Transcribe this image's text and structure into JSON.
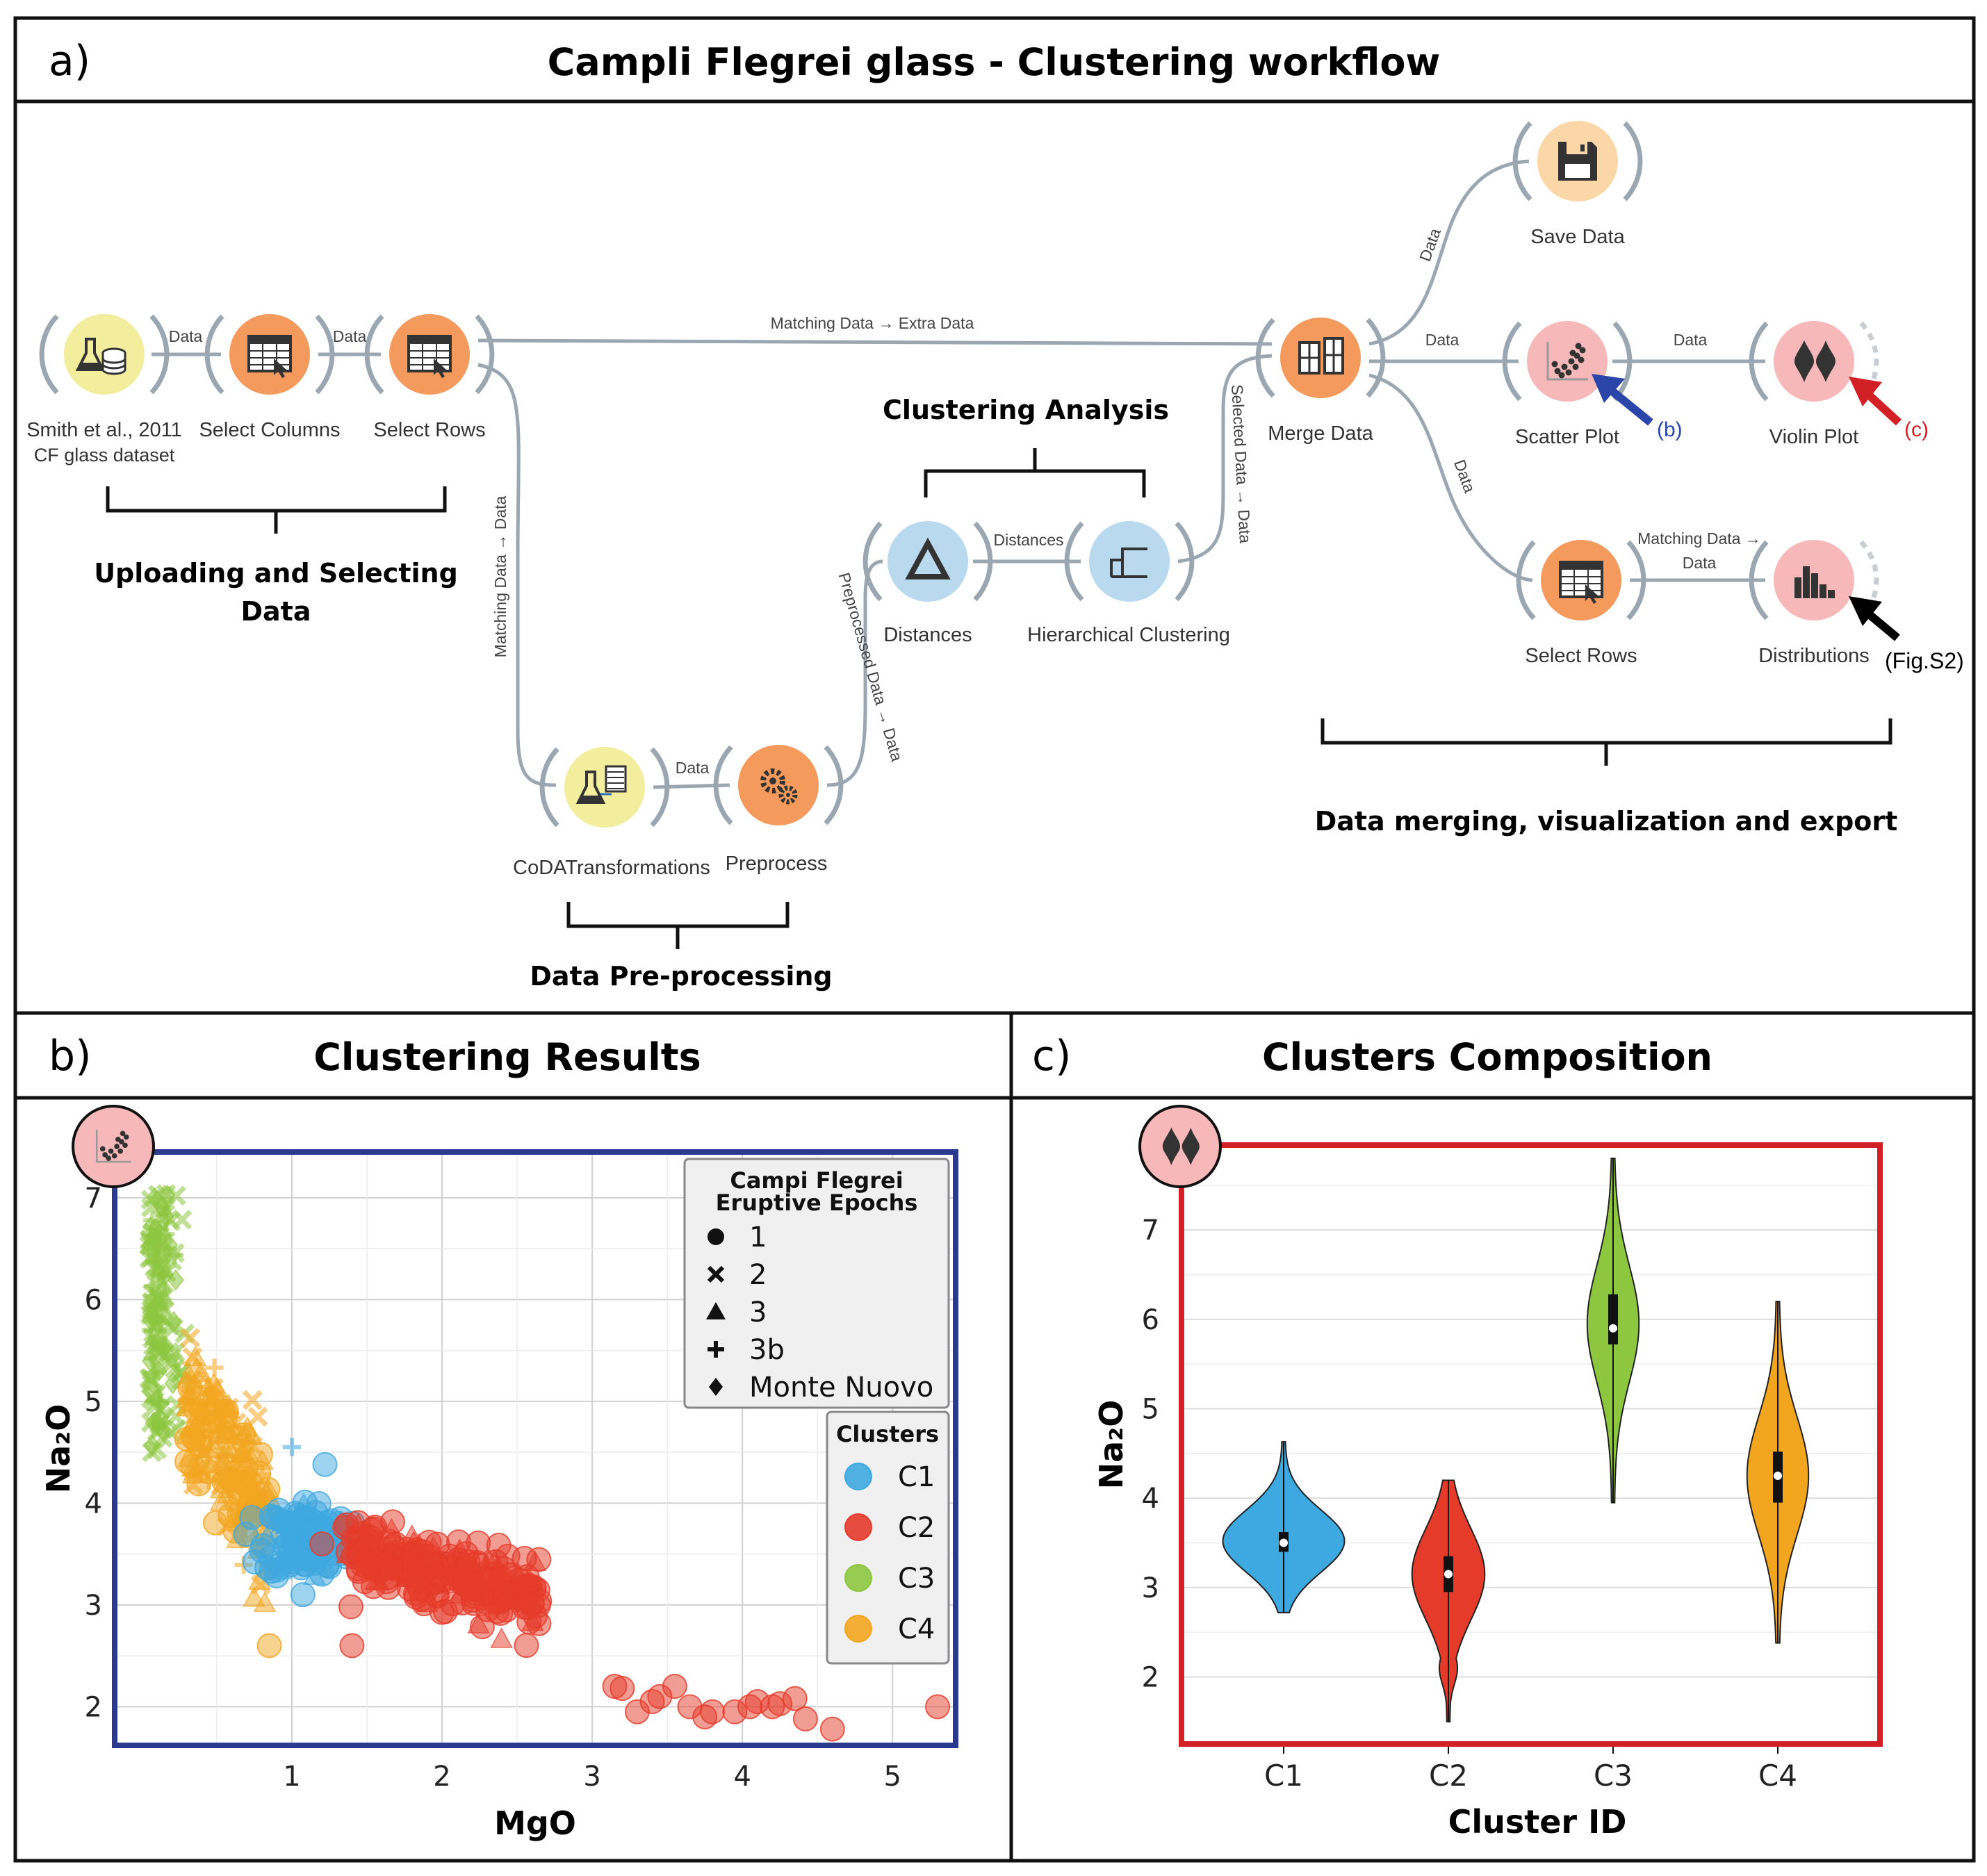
{
  "panel_a": {
    "letter": "a)",
    "title": "Campli Flegrei glass - Clustering workflow",
    "nodes": [
      {
        "id": "dataset",
        "label": "Smith et al., 2011",
        "label2": "CF glass dataset",
        "icon": "flask-database-icon",
        "color": "#f2ee9e"
      },
      {
        "id": "select_columns",
        "label": "Select Columns",
        "icon": "table-columns-icon",
        "color": "#f39a5c"
      },
      {
        "id": "select_rows_1",
        "label": "Select Rows",
        "icon": "table-rows-cursor-icon",
        "color": "#f39a5c"
      },
      {
        "id": "coda",
        "label": "CoDATransformations",
        "icon": "flask-table-icon",
        "color": "#f2ee9e"
      },
      {
        "id": "preprocess",
        "label": "Preprocess",
        "icon": "gears-icon",
        "color": "#f39a5c"
      },
      {
        "id": "distances",
        "label": "Distances",
        "icon": "triangle-icon",
        "color": "#b9d9ef"
      },
      {
        "id": "hier",
        "label": "Hierarchical Clustering",
        "icon": "dendrogram-icon",
        "color": "#b9d9ef"
      },
      {
        "id": "merge",
        "label": "Merge Data",
        "icon": "merge-table-icon",
        "color": "#f39a5c"
      },
      {
        "id": "save",
        "label": "Save Data",
        "icon": "floppy-disk-icon",
        "color": "#fbd7a8"
      },
      {
        "id": "scatter",
        "label": "Scatter Plot",
        "icon": "scatter-plot-icon",
        "color": "#f6b8b8"
      },
      {
        "id": "violin",
        "label": "Violin Plot",
        "icon": "violin-plot-icon",
        "color": "#f6b8b8"
      },
      {
        "id": "select_rows_2",
        "label": "Select Rows",
        "icon": "table-rows-cursor-icon",
        "color": "#f39a5c"
      },
      {
        "id": "distributions",
        "label": "Distributions",
        "icon": "histogram-icon",
        "color": "#f6b8b8"
      }
    ],
    "links": {
      "data": "Data",
      "matching_extra": "Matching Data → Extra Data",
      "matching_data": "Matching Data → Data",
      "preprocessed": "Preprocessed Data → Data",
      "distances": "Distances",
      "selected": "Selected Data → Data",
      "matching_data_l1": "Matching Data →",
      "matching_data_l2": "Data"
    },
    "groups": {
      "uploading_l1": "Uploading and Selecting",
      "uploading_l2": "Data",
      "preprocessing": "Data Pre-processing",
      "clustering": "Clustering Analysis",
      "merging": "Data merging, visualization and export"
    },
    "arrows": {
      "b": "(b)",
      "c": "(c)",
      "s2": "(Fig.S2)"
    },
    "arrow_colors": {
      "b": "#2b45a8",
      "c": "#d22027",
      "s2": "#000000"
    }
  },
  "panel_b": {
    "letter": "b)",
    "title": "Clustering Results",
    "frame_color": "#2b3a8f",
    "chart_data": {
      "type": "scatter",
      "xlabel": "MgO",
      "ylabel": "Na₂O",
      "xlim": [
        -0.18,
        5.42
      ],
      "ylim": [
        1.62,
        7.45
      ],
      "xticks": [
        1,
        2,
        3,
        4,
        5
      ],
      "yticks": [
        2,
        3,
        4,
        5,
        6,
        7
      ],
      "grid": true,
      "legend_placement": "top-right",
      "legend_epochs_title_l1": "Campi Flegrei",
      "legend_epochs_title_l2": "Eruptive Epochs",
      "legend_epochs": [
        "1",
        "2",
        "3",
        "3b",
        "Monte Nuovo"
      ],
      "legend_clusters_title": "Clusters",
      "clusters": [
        {
          "name": "C1",
          "color": "#3ea8e0"
        },
        {
          "name": "C2",
          "color": "#e53b2a"
        },
        {
          "name": "C3",
          "color": "#8dc63f"
        },
        {
          "name": "C4",
          "color": "#f2a620"
        }
      ],
      "cluster_regions": [
        {
          "cluster": "C3",
          "center": [
            0.12,
            5.8
          ],
          "spread": [
            0.08,
            0.8
          ],
          "count": 140
        },
        {
          "cluster": "C4",
          "center": [
            0.55,
            4.3
          ],
          "spread": [
            0.22,
            0.55
          ],
          "count": 200
        },
        {
          "cluster": "C1",
          "center": [
            1.1,
            3.65
          ],
          "spread": [
            0.14,
            0.35
          ],
          "count": 140
        },
        {
          "cluster": "C2",
          "center": [
            2.0,
            3.15
          ],
          "spread": [
            0.45,
            0.25
          ],
          "count": 230
        }
      ],
      "points": [
        {
          "x": 3.15,
          "y": 2.2,
          "c": "C2"
        },
        {
          "x": 3.2,
          "y": 2.18,
          "c": "C2"
        },
        {
          "x": 3.3,
          "y": 1.95,
          "c": "C2"
        },
        {
          "x": 3.4,
          "y": 2.05,
          "c": "C2"
        },
        {
          "x": 3.45,
          "y": 2.1,
          "c": "C2"
        },
        {
          "x": 3.55,
          "y": 2.2,
          "c": "C2"
        },
        {
          "x": 3.65,
          "y": 2.0,
          "c": "C2"
        },
        {
          "x": 3.75,
          "y": 1.9,
          "c": "C2"
        },
        {
          "x": 3.8,
          "y": 1.95,
          "c": "C2"
        },
        {
          "x": 3.95,
          "y": 1.95,
          "c": "C2"
        },
        {
          "x": 4.05,
          "y": 2.0,
          "c": "C2"
        },
        {
          "x": 4.1,
          "y": 2.05,
          "c": "C2"
        },
        {
          "x": 4.2,
          "y": 2.0,
          "c": "C2"
        },
        {
          "x": 4.25,
          "y": 2.03,
          "c": "C2"
        },
        {
          "x": 4.35,
          "y": 2.08,
          "c": "C2"
        },
        {
          "x": 4.42,
          "y": 1.88,
          "c": "C2"
        },
        {
          "x": 4.6,
          "y": 1.78,
          "c": "C2"
        },
        {
          "x": 5.3,
          "y": 2.0,
          "c": "C2"
        },
        {
          "x": 1.4,
          "y": 2.6,
          "c": "C2"
        },
        {
          "x": 0.85,
          "y": 2.6,
          "c": "C4"
        },
        {
          "x": 1.22,
          "y": 4.38,
          "c": "C1"
        },
        {
          "x": 1.2,
          "y": 3.6,
          "c": "C2"
        }
      ]
    }
  },
  "panel_c": {
    "letter": "c)",
    "title": "Clusters Composition",
    "frame_color": "#d22027",
    "chart_data": {
      "type": "violin",
      "xlabel": "Cluster ID",
      "ylabel": "Na₂O",
      "ylim": [
        1.25,
        7.95
      ],
      "yticks": [
        2,
        3,
        4,
        5,
        6,
        7
      ],
      "grid": true,
      "categories": [
        "C1",
        "C2",
        "C3",
        "C4"
      ],
      "series": [
        {
          "name": "C1",
          "color": "#3ea8e0",
          "min": 2.72,
          "q1": 3.4,
          "median": 3.5,
          "q3": 3.62,
          "max": 4.63,
          "peak": 3.52,
          "width": 0.85
        },
        {
          "name": "C2",
          "color": "#e53b2a",
          "min": 1.5,
          "q1": 2.95,
          "median": 3.15,
          "q3": 3.35,
          "max": 4.2,
          "peak": 3.15,
          "width": 0.5
        },
        {
          "name": "C3",
          "color": "#8dc63f",
          "min": 3.95,
          "q1": 5.72,
          "median": 5.9,
          "q3": 6.28,
          "max": 7.8,
          "peak": 5.95,
          "width": 0.35
        },
        {
          "name": "C4",
          "color": "#f2a620",
          "min": 2.38,
          "q1": 3.95,
          "median": 4.25,
          "q3": 4.52,
          "max": 6.2,
          "peak": 4.25,
          "width": 0.42
        }
      ]
    }
  }
}
